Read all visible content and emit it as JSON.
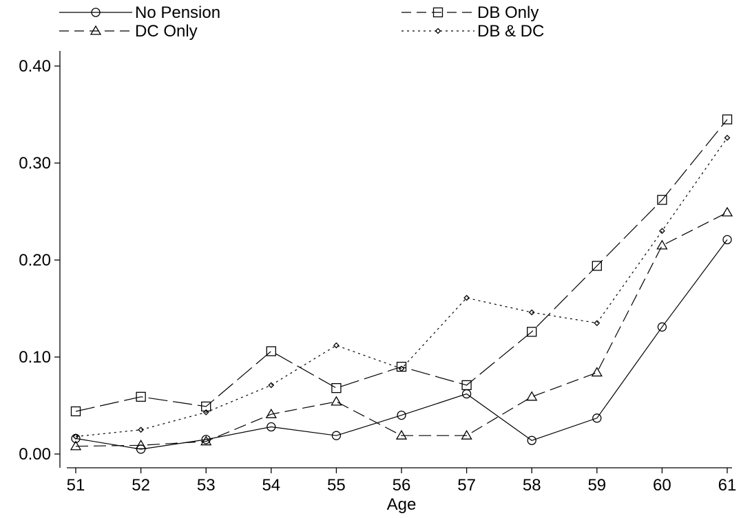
{
  "chart_data": {
    "type": "line",
    "xlabel": "Age",
    "ylabel": "",
    "x": [
      51,
      52,
      53,
      54,
      55,
      56,
      57,
      58,
      59,
      60,
      61
    ],
    "x_tick_labels": [
      "51",
      "52",
      "53",
      "54",
      "55",
      "56",
      "57",
      "58",
      "59",
      "60",
      "61"
    ],
    "ylim": [
      0,
      0.4
    ],
    "y_ticks": [
      0.0,
      0.1,
      0.2,
      0.3,
      0.4
    ],
    "y_tick_labels": [
      "0.00",
      "0.10",
      "0.20",
      "0.30",
      "0.40"
    ],
    "grid": false,
    "legend_position": "top",
    "series": [
      {
        "name": "No Pension",
        "marker": "circle",
        "dash": "solid",
        "values": [
          0.016,
          0.005,
          0.015,
          0.028,
          0.019,
          0.04,
          0.062,
          0.014,
          0.037,
          0.131,
          0.221
        ]
      },
      {
        "name": "DB Only",
        "marker": "square",
        "dash": "longdash",
        "values": [
          0.044,
          0.059,
          0.049,
          0.106,
          0.068,
          0.09,
          0.071,
          0.126,
          0.194,
          0.262,
          0.345
        ]
      },
      {
        "name": "DC Only",
        "marker": "triangle",
        "dash": "dash",
        "values": [
          0.008,
          0.009,
          0.013,
          0.041,
          0.054,
          0.019,
          0.019,
          0.059,
          0.084,
          0.215,
          0.249
        ]
      },
      {
        "name": "DB & DC",
        "marker": "diamond",
        "dash": "dotted",
        "values": [
          0.018,
          0.025,
          0.043,
          0.071,
          0.112,
          0.088,
          0.161,
          0.146,
          0.135,
          0.23,
          0.326
        ]
      }
    ]
  }
}
